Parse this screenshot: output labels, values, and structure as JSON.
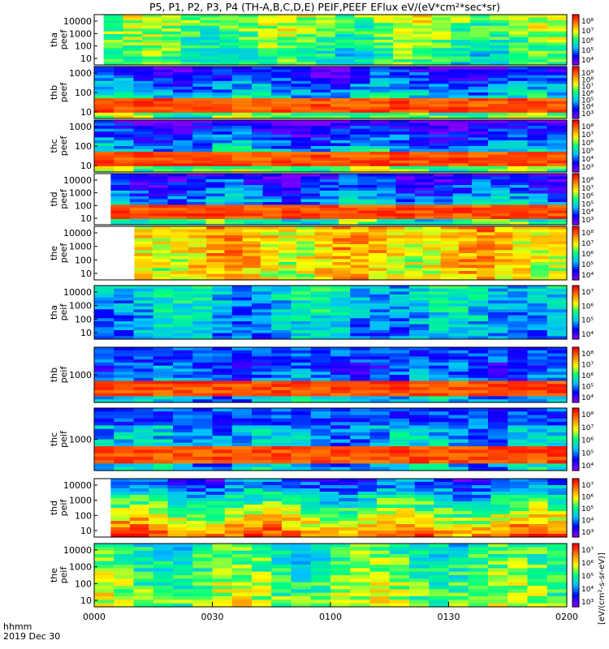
{
  "chart_data": {
    "type": "heatmap",
    "title": "P5, P1, P2, P3, P4 (TH-A,B,C,D,E) PEIF,PEEF EFlux eV/(eV*cm²*sec*sr)",
    "x_axis": {
      "ticks": [
        "0000",
        "0030",
        "0100",
        "0130",
        "0200"
      ],
      "corner_label": "hhmm",
      "date_label": "2019 Dec 30"
    },
    "colorbar_units": "[eV/(cm²-s-sr-eV)]",
    "colormap": [
      "#7f00ff",
      "#0000ff",
      "#00bfff",
      "#00ff80",
      "#ffff00",
      "#ff8000",
      "#ff0000"
    ],
    "panels": [
      {
        "ylabel_top": "tha",
        "ylabel_bottom": "peef",
        "yticks": [
          "10000",
          "1000",
          "100",
          "10"
        ],
        "cbar_ticks": [
          "10⁸",
          "10⁷",
          "10⁶",
          "10⁵",
          "10⁴"
        ],
        "start_frac": 0.02,
        "base_level": 0.45,
        "top_level": 0.6,
        "cold_band": 0.0,
        "hot_band": 0.0
      },
      {
        "ylabel_top": "thb",
        "ylabel_bottom": "peef",
        "yticks": [
          "1000",
          "100",
          "10"
        ],
        "cbar_ticks": [
          "10⁹",
          "10⁸",
          "10⁷",
          "10⁶",
          "10⁵",
          "10⁴",
          "10³"
        ],
        "start_frac": 0.0,
        "base_level": 0.55,
        "top_level": 0.1,
        "cold_band": 0.0,
        "hot_band": 1.0
      },
      {
        "ylabel_top": "thc",
        "ylabel_bottom": "peef",
        "yticks": [
          "1000",
          "100",
          "10"
        ],
        "cbar_ticks": [
          "10⁸",
          "10⁷",
          "10⁶",
          "10⁵",
          "10⁴",
          "10³"
        ],
        "start_frac": 0.0,
        "base_level": 0.55,
        "top_level": 0.05,
        "cold_band": 0.0,
        "hot_band": 1.0
      },
      {
        "ylabel_top": "thd",
        "ylabel_bottom": "peef",
        "yticks": [
          "10000",
          "1000",
          "100",
          "10"
        ],
        "cbar_ticks": [
          "10⁸",
          "10⁷",
          "10⁶",
          "10⁵",
          "10⁴",
          "10³"
        ],
        "start_frac": 0.035,
        "base_level": 0.5,
        "top_level": 0.1,
        "cold_band": 0.0,
        "hot_band": 1.0
      },
      {
        "ylabel_top": "the",
        "ylabel_bottom": "peef",
        "yticks": [
          "10000",
          "1000",
          "100",
          "10"
        ],
        "cbar_ticks": [
          "10⁸",
          "10⁷",
          "10⁶",
          "10⁵",
          "10⁴"
        ],
        "start_frac": 0.085,
        "base_level": 0.7,
        "top_level": 0.75,
        "cold_band": 0.0,
        "hot_band": 0.0
      },
      {
        "ylabel_top": "tha",
        "ylabel_bottom": "peif",
        "yticks": [
          "10000",
          "1000",
          "100",
          "10"
        ],
        "cbar_ticks": [
          "10⁷",
          "10⁶",
          "10⁵",
          "10⁴"
        ],
        "start_frac": 0.0,
        "base_level": 0.3,
        "top_level": 0.4,
        "cold_band": 0.0,
        "hot_band": 0.0
      },
      {
        "ylabel_top": "thb",
        "ylabel_bottom": "peif",
        "yticks": [
          "1000"
        ],
        "cbar_ticks": [
          "10⁸",
          "10⁷",
          "10⁶",
          "10⁵",
          "10⁴"
        ],
        "start_frac": 0.0,
        "base_level": 0.35,
        "top_level": 0.15,
        "cold_band": 1.0,
        "hot_band": 1.0
      },
      {
        "ylabel_top": "thc",
        "ylabel_bottom": "peif",
        "yticks": [
          "1000"
        ],
        "cbar_ticks": [
          "10⁸",
          "10⁷",
          "10⁶",
          "10⁵",
          "10⁴"
        ],
        "start_frac": 0.0,
        "base_level": 0.35,
        "top_level": 0.3,
        "cold_band": 1.0,
        "hot_band": 1.0
      },
      {
        "ylabel_top": "thd",
        "ylabel_bottom": "peif",
        "yticks": [
          "10000",
          "1000",
          "100",
          "10"
        ],
        "cbar_ticks": [
          "10⁷",
          "10⁶",
          "10⁵",
          "10⁴",
          "10³"
        ],
        "start_frac": 0.035,
        "base_level": 0.85,
        "top_level": 0.2,
        "cold_band": 0.0,
        "hot_band": 0.0
      },
      {
        "ylabel_top": "the",
        "ylabel_bottom": "peif",
        "yticks": [
          "10000",
          "1000",
          "100",
          "10"
        ],
        "cbar_ticks": [
          "10⁷",
          "10⁶",
          "10⁵",
          "10⁴",
          "10³"
        ],
        "start_frac": 0.0,
        "base_level": 0.6,
        "top_level": 0.45,
        "cold_band": 0.0,
        "hot_band": 0.0
      }
    ]
  }
}
